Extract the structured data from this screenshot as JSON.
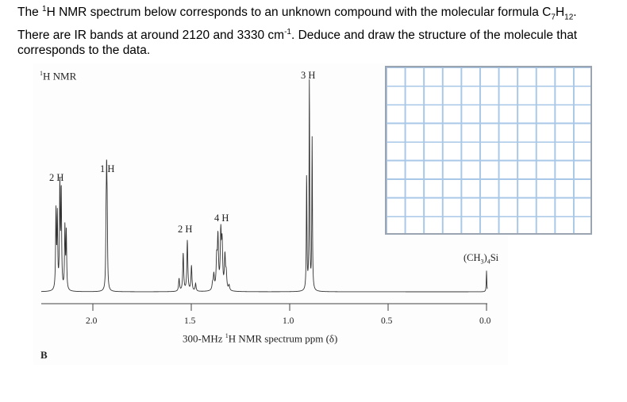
{
  "question": {
    "line1_pre": "The ",
    "line1_sup": "1",
    "line1_mid": "H NMR spectrum below corresponds to an unknown compound with the molecular formula C",
    "line1_sub7": "7",
    "line1_h": "H",
    "line1_sub12": "12",
    "line1_end": ".",
    "line2_pre": "There are IR bands at around 2120 and 3330 cm",
    "line2_sup": "-1",
    "line2_end": ". Deduce and draw the structure of the molecule that",
    "line3": "corresponds to the data."
  },
  "spectrum": {
    "title_sup": "1",
    "title": "H NMR",
    "panel_label": "B",
    "tms_label": "(CH3)4Si",
    "xlabel_pre": "300-MHz ",
    "xlabel_sup": "1",
    "xlabel_post": "H NMR spectrum ppm (δ)"
  },
  "chart_data": {
    "type": "line",
    "title": "1H NMR",
    "xlabel": "300-MHz 1H NMR spectrum ppm (δ)",
    "ylabel": "",
    "xlim": [
      2.25,
      -0.05
    ],
    "x_reversed": true,
    "ticks": [
      "2.0",
      "1.5",
      "1.0",
      "0.5",
      "0.0"
    ],
    "tick_values": [
      2.0,
      1.5,
      1.0,
      0.5,
      0.0
    ],
    "peaks": [
      {
        "shift": 2.17,
        "integration": "2 H",
        "multiplicity": "td (multiplet)",
        "rel_height": 0.49
      },
      {
        "shift": 1.93,
        "integration": "1 H",
        "multiplicity": "t",
        "rel_height": 0.47
      },
      {
        "shift": 1.52,
        "integration": "2 H",
        "multiplicity": "quintet",
        "rel_height": 0.24
      },
      {
        "shift": 1.35,
        "integration": "4 H",
        "multiplicity": "multiplet",
        "rel_height": 0.28
      },
      {
        "shift": 0.9,
        "integration": "3 H",
        "multiplicity": "t",
        "rel_height": 1.0
      },
      {
        "shift": 0.0,
        "integration": "",
        "label": "(CH3)4Si",
        "multiplicity": "s",
        "rel_height": 0.1
      }
    ],
    "integration_labels": [
      "2 H",
      "1 H",
      "2 H",
      "4 H",
      "3 H"
    ],
    "grid": false
  },
  "answer_grid": {
    "columns": 11,
    "rows": 9,
    "line_color": "#a9c8e8",
    "border_color": "#9aa5b1"
  }
}
